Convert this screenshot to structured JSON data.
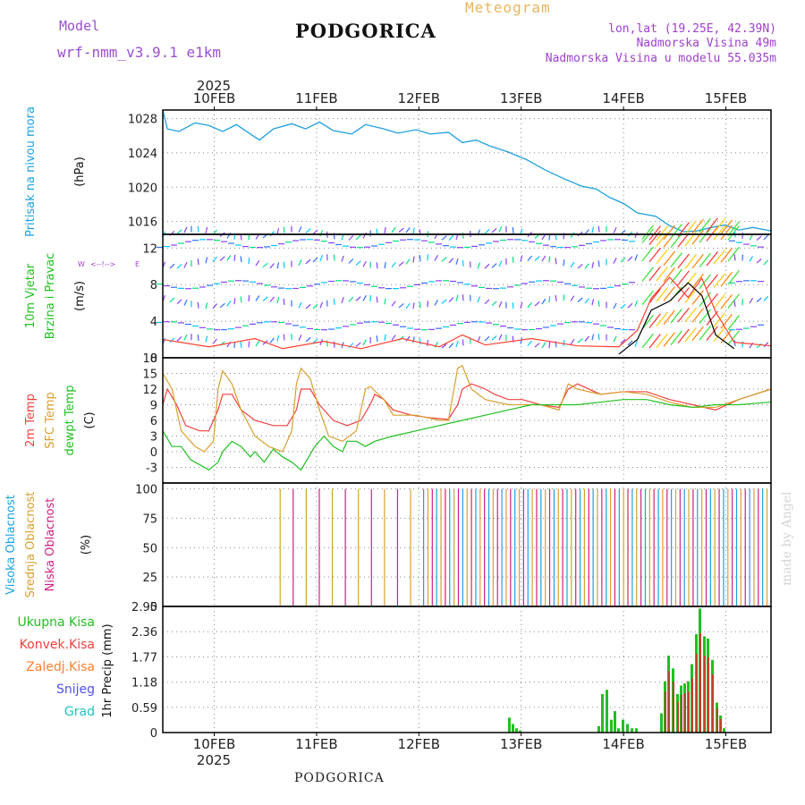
{
  "header": {
    "model_label": "Model",
    "model_value": "wrf-nmm_v3.9.1  e1km",
    "meteogram_label": "Meteogram",
    "city": "PODGORICA",
    "coords": "lon,lat (19.25E, 42.39N)",
    "altitude": "Nadmorska Visina 49m",
    "model_altitude": "Nadmorska Visina u modelu 55.035m"
  },
  "footer": {
    "city": "PODGORICA",
    "watermark": "made by Angel"
  },
  "time_axis": {
    "year": "2025",
    "days": [
      "10FEB",
      "11FEB",
      "12FEB",
      "13FEB",
      "14FEB",
      "15FEB"
    ],
    "x_start": 0,
    "x_end": 6
  }
}
